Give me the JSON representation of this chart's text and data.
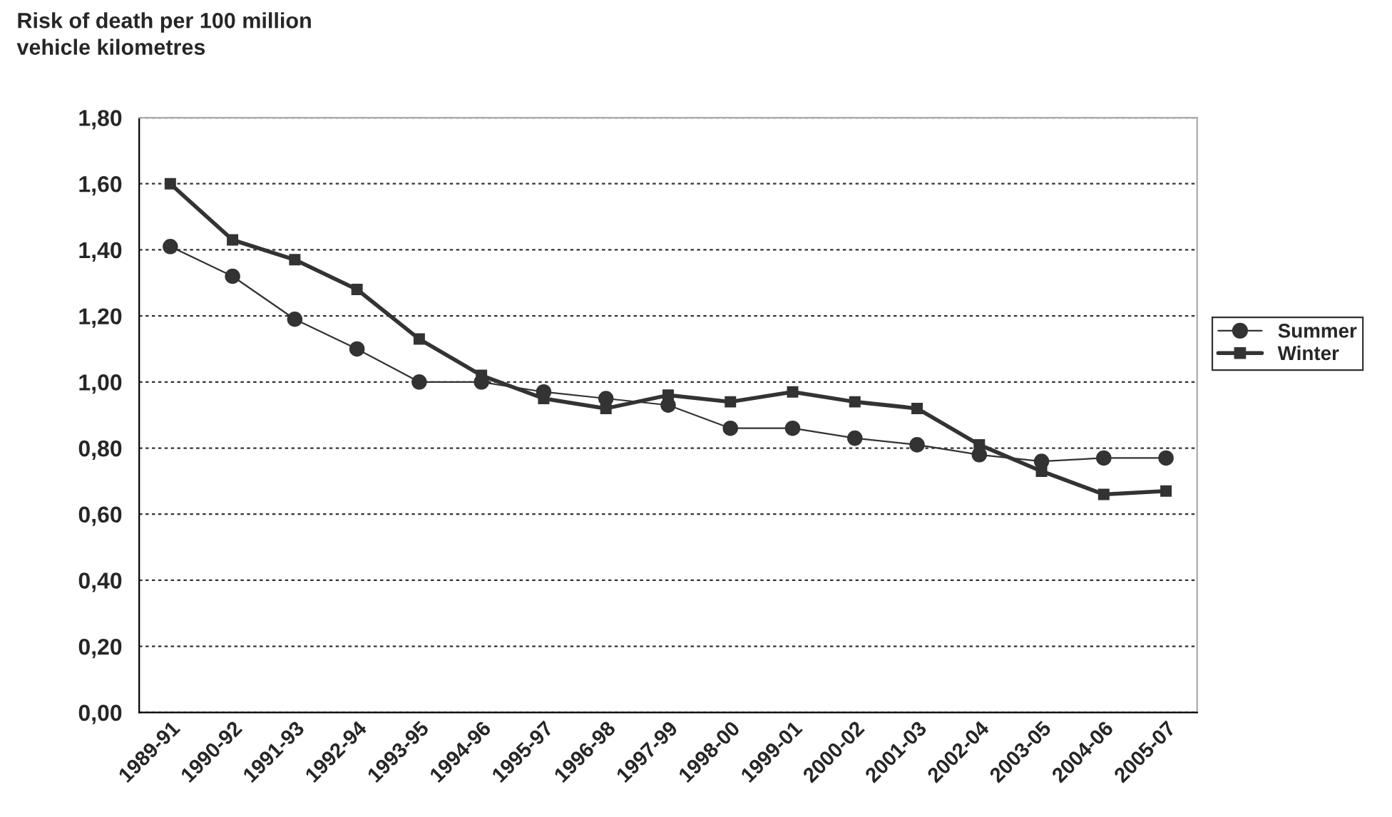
{
  "chart_data": {
    "type": "line",
    "title": "Risk of death per 100 million\nvehicle kilometres",
    "categories": [
      "1989-91",
      "1990-92",
      "1991-93",
      "1992-94",
      "1993-95",
      "1994-96",
      "1995-97",
      "1996-98",
      "1997-99",
      "1998-00",
      "1999-01",
      "2000-02",
      "2001-03",
      "2002-04",
      "2003-05",
      "2004-06",
      "2005-07"
    ],
    "series": [
      {
        "name": "Summer",
        "color": "#333333",
        "marker": "circle",
        "values": [
          1.41,
          1.32,
          1.19,
          1.1,
          1.0,
          1.0,
          0.97,
          0.95,
          0.93,
          0.86,
          0.86,
          0.83,
          0.81,
          0.78,
          0.76,
          0.77,
          0.77
        ]
      },
      {
        "name": "Winter",
        "color": "#333333",
        "marker": "square",
        "values": [
          1.6,
          1.43,
          1.37,
          1.28,
          1.13,
          1.02,
          0.95,
          0.92,
          0.96,
          0.94,
          0.97,
          0.94,
          0.92,
          0.81,
          0.73,
          0.66,
          0.67
        ]
      }
    ],
    "ylim": [
      0,
      1.8
    ],
    "yticks": [
      {
        "value": 0,
        "label": "0,00"
      },
      {
        "value": 0.2,
        "label": "0,20"
      },
      {
        "value": 0.4,
        "label": "0,40"
      },
      {
        "value": 0.6,
        "label": "0,60"
      },
      {
        "value": 0.8,
        "label": "0,80"
      },
      {
        "value": 1.0,
        "label": "1,00"
      },
      {
        "value": 1.2,
        "label": "1,20"
      },
      {
        "value": 1.4,
        "label": "1,40"
      },
      {
        "value": 1.6,
        "label": "1,60"
      },
      {
        "value": 1.8,
        "label": "1,80"
      }
    ],
    "grid": "y",
    "legend": "right"
  }
}
